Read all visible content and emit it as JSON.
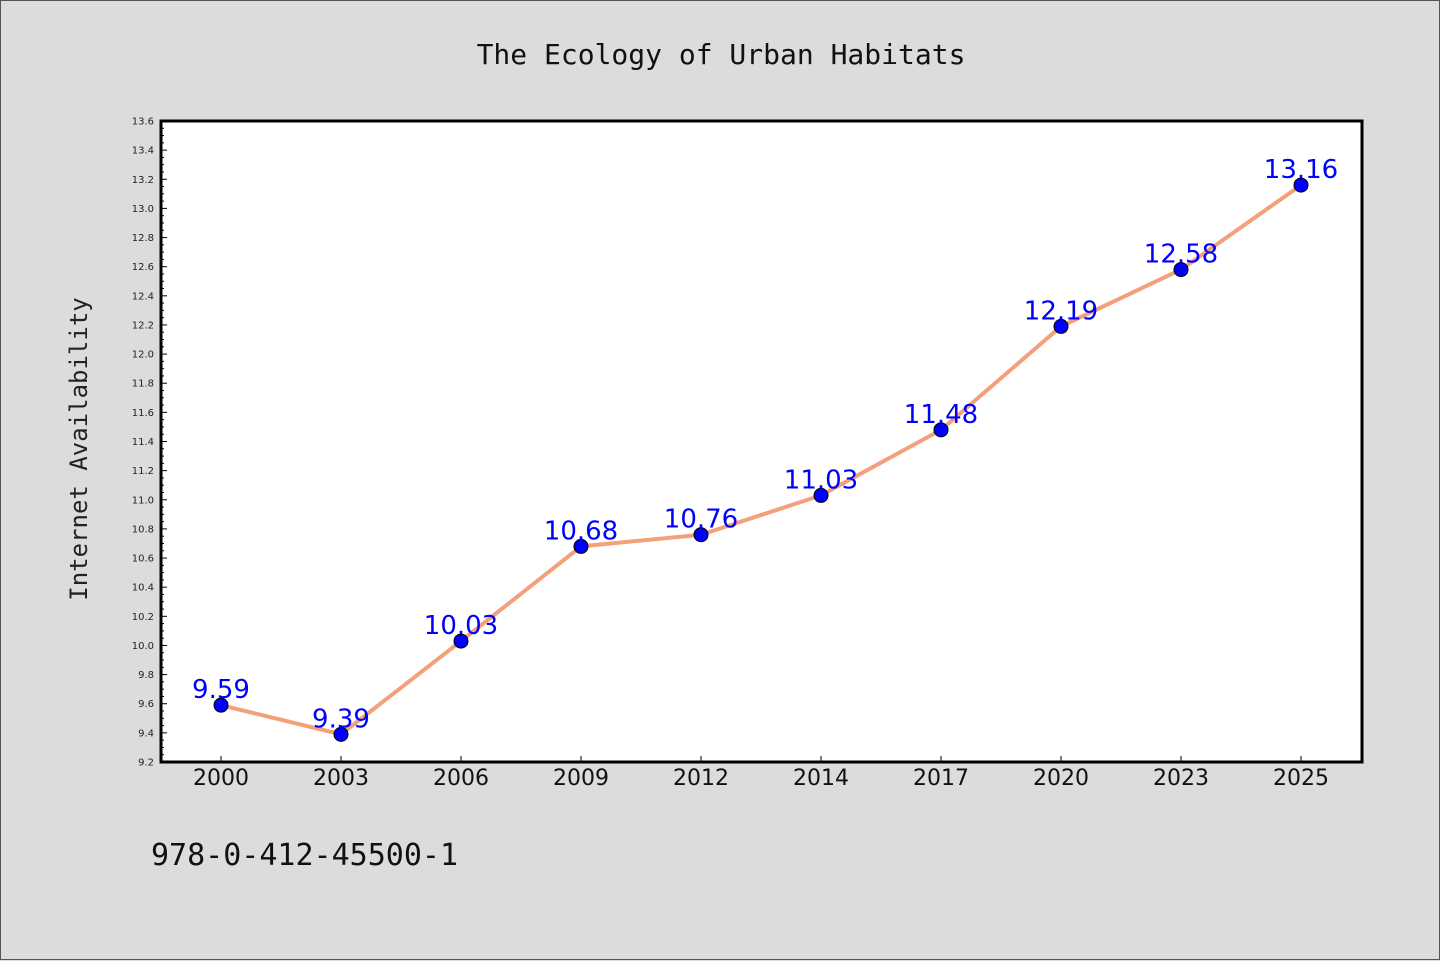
{
  "chart_data": {
    "type": "line",
    "title": "The Ecology of Urban Habitats",
    "xlabel": "",
    "ylabel": "Internet Availability",
    "categories": [
      "2000",
      "2003",
      "2006",
      "2009",
      "2012",
      "2014",
      "2017",
      "2020",
      "2023",
      "2025"
    ],
    "series": [
      {
        "values": [
          9.59,
          9.39,
          10.03,
          10.68,
          10.76,
          11.03,
          11.48,
          12.19,
          12.58,
          13.16
        ],
        "data_labels": [
          "9.59",
          "9.39",
          "10.03",
          "10.68",
          "10.76",
          "11.03",
          "11.48",
          "12.19",
          "12.58",
          "13.16"
        ],
        "line_color": "#f4a07a",
        "marker_color": "#0000ff"
      }
    ],
    "ylim": [
      9.2,
      13.6
    ],
    "yticks": [
      "9.2",
      "9.4",
      "9.6",
      "9.8",
      "10.0",
      "10.2",
      "10.4",
      "10.6",
      "10.8",
      "11.0",
      "11.2",
      "11.4",
      "11.6",
      "11.8",
      "12.0",
      "12.2",
      "12.4",
      "12.6",
      "12.8",
      "13.0",
      "13.2",
      "13.4",
      "13.6"
    ],
    "grid": false,
    "legend": "none",
    "label_color": "#0000ff"
  },
  "footer": {
    "isbn": "978-0-412-45500-1"
  }
}
